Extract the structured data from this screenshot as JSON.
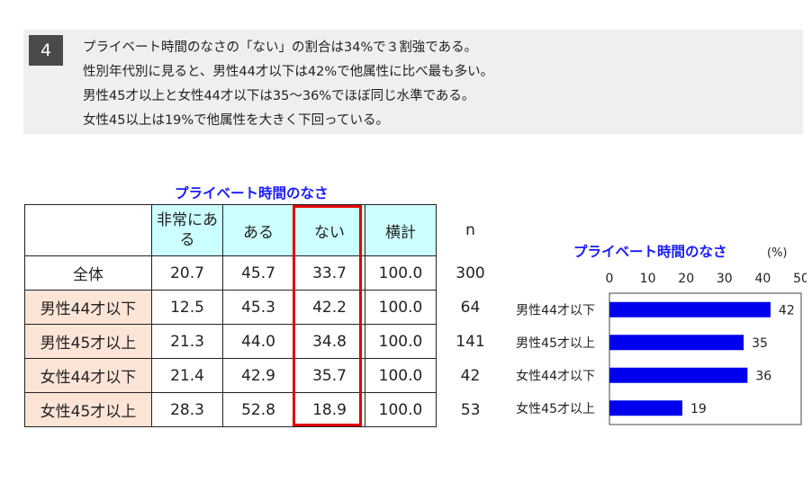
{
  "note": {
    "number": "4",
    "lines": [
      "プライベート時間のなさの「ない」の割合は34%で３割強である。",
      "性別年代別に見ると、男性44才以下は42%で他属性に比べ最も多い。",
      "男性45才以上と女性44才以下は35～36%でほぼ同じ水準である。",
      "女性45以上は19%で他属性を大きく下回っている。"
    ]
  },
  "table": {
    "title": "プライベート時間のなさ",
    "headers": [
      "非常にある",
      "ある",
      "ない",
      "横計",
      "n"
    ],
    "highlight_column": "ない",
    "rows": [
      {
        "label": "全体",
        "values": [
          "20.7",
          "45.7",
          "33.7",
          "100.0",
          "300"
        ],
        "emphasis": false
      },
      {
        "label": "男性44才以下",
        "values": [
          "12.5",
          "45.3",
          "42.2",
          "100.0",
          "64"
        ],
        "emphasis": true
      },
      {
        "label": "男性45才以上",
        "values": [
          "21.3",
          "44.0",
          "34.8",
          "100.0",
          "141"
        ],
        "emphasis": true
      },
      {
        "label": "女性44才以下",
        "values": [
          "21.4",
          "42.9",
          "35.7",
          "100.0",
          "42"
        ],
        "emphasis": true
      },
      {
        "label": "女性45才以上",
        "values": [
          "28.3",
          "52.8",
          "18.9",
          "100.0",
          "53"
        ],
        "emphasis": true
      }
    ],
    "colors": {
      "header_bg": "#ccffff",
      "label_bg": "#fce4d6",
      "highlight_border": "#e00000"
    }
  },
  "chart_data": {
    "type": "bar",
    "orientation": "horizontal",
    "title": "プライベート時間のなさ",
    "unit": "(%)",
    "categories": [
      "男性44才以下",
      "男性45才以上",
      "女性44才以下",
      "女性45才以上"
    ],
    "values": [
      42,
      35,
      36,
      19
    ],
    "xlim": [
      0,
      50
    ],
    "xticks": [
      0,
      10,
      20,
      30,
      40,
      50
    ],
    "bar_color": "#0000ee",
    "grid": false,
    "legend": "none"
  }
}
